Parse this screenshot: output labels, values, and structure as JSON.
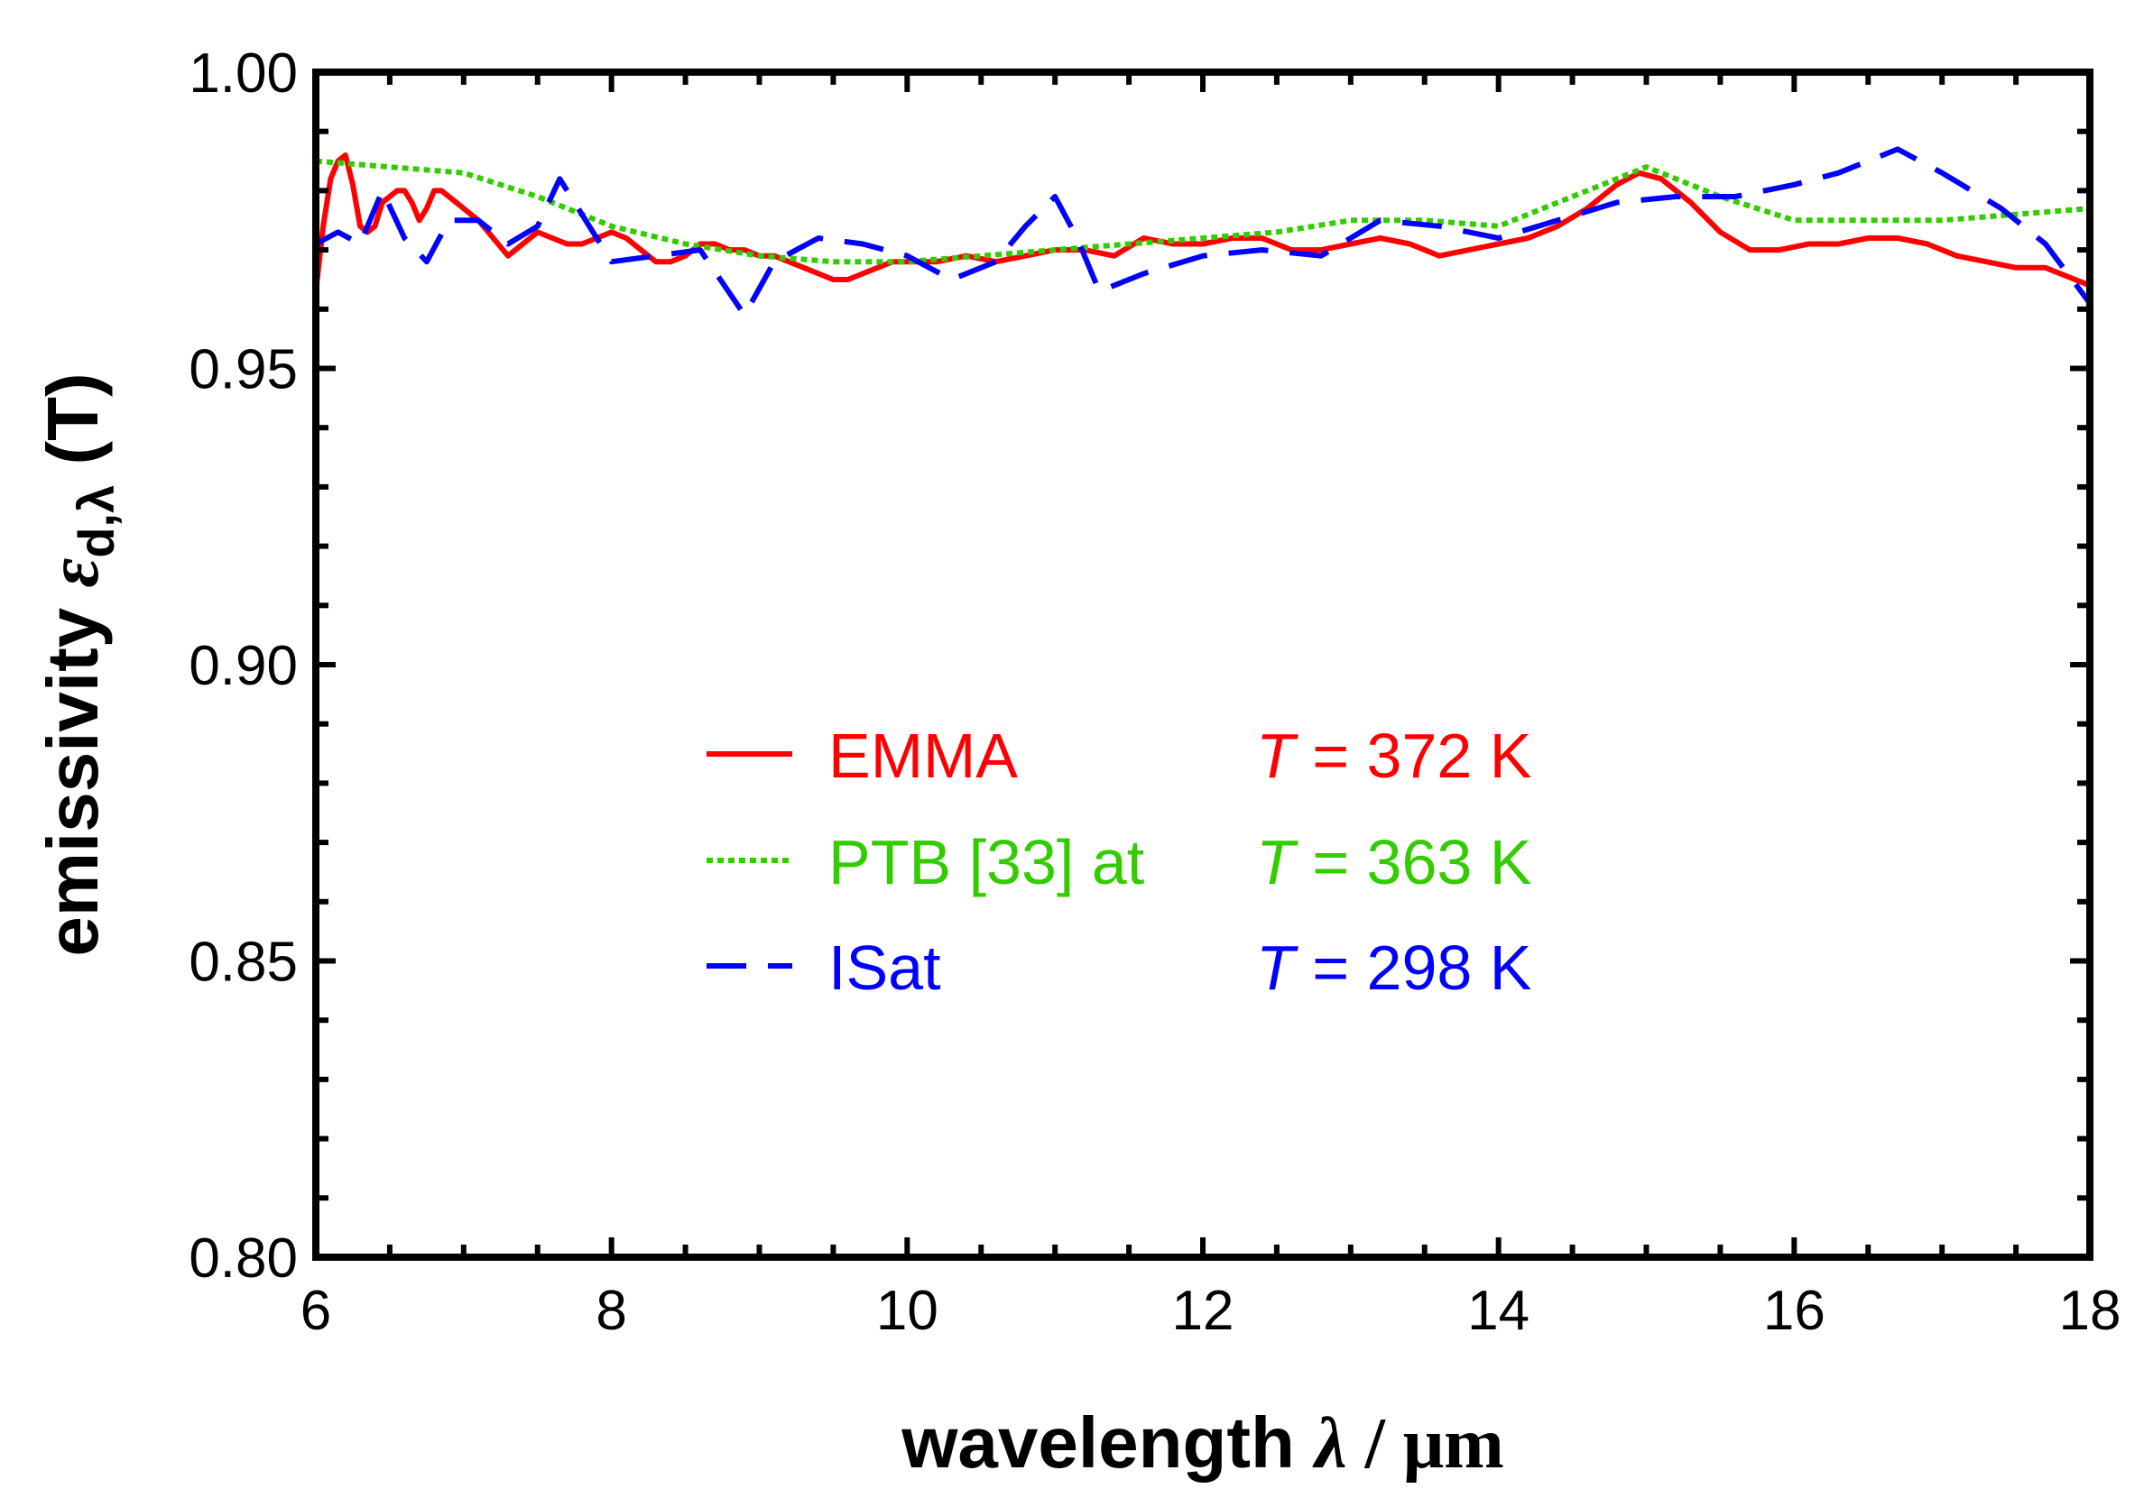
{
  "chart_data": {
    "type": "line",
    "xlabel": {
      "prefix": "wavelength ",
      "symbol": "λ",
      "unit": " /  μm"
    },
    "ylabel": {
      "prefix": "emissivity  ",
      "symbol": "ε",
      "subscript": "d,λ",
      "suffix": " (T)"
    },
    "xlim": [
      6,
      18
    ],
    "ylim": [
      0.8,
      1.0
    ],
    "x_ticks": [
      "6",
      "8",
      "10",
      "12",
      "14",
      "16",
      "18"
    ],
    "y_ticks": [
      "0.80",
      "0.85",
      "0.90",
      "0.95",
      "1.00"
    ],
    "series": [
      {
        "name": "EMMA",
        "temperature_label": {
          "symbol": "T",
          "text": " = 372 K"
        },
        "color": "#ff0000",
        "style": "solid",
        "x": [
          6.0,
          6.05,
          6.1,
          6.15,
          6.2,
          6.25,
          6.3,
          6.35,
          6.4,
          6.45,
          6.5,
          6.55,
          6.6,
          6.65,
          6.7,
          6.75,
          6.8,
          6.85,
          6.9,
          7.0,
          7.1,
          7.2,
          7.3,
          7.4,
          7.5,
          7.6,
          7.7,
          7.8,
          7.9,
          8.0,
          8.1,
          8.2,
          8.3,
          8.4,
          8.5,
          8.6,
          8.7,
          8.8,
          8.9,
          9.0,
          9.1,
          9.2,
          9.3,
          9.4,
          9.5,
          9.6,
          9.7,
          9.8,
          9.9,
          10.0,
          10.2,
          10.4,
          10.6,
          10.8,
          11.0,
          11.2,
          11.4,
          11.6,
          11.8,
          12.0,
          12.2,
          12.4,
          12.6,
          12.8,
          13.0,
          13.2,
          13.4,
          13.6,
          13.8,
          14.0,
          14.2,
          14.4,
          14.6,
          14.8,
          14.95,
          15.1,
          15.3,
          15.5,
          15.7,
          15.9,
          16.1,
          16.3,
          16.5,
          16.7,
          16.9,
          17.1,
          17.3,
          17.5,
          17.7,
          17.9,
          18.0
        ],
        "values": [
          0.963,
          0.974,
          0.982,
          0.985,
          0.986,
          0.981,
          0.974,
          0.973,
          0.974,
          0.978,
          0.979,
          0.98,
          0.98,
          0.978,
          0.975,
          0.977,
          0.98,
          0.98,
          0.979,
          0.977,
          0.975,
          0.972,
          0.969,
          0.971,
          0.973,
          0.972,
          0.971,
          0.971,
          0.972,
          0.973,
          0.972,
          0.97,
          0.968,
          0.968,
          0.969,
          0.971,
          0.971,
          0.97,
          0.97,
          0.969,
          0.969,
          0.968,
          0.967,
          0.966,
          0.965,
          0.965,
          0.966,
          0.967,
          0.968,
          0.968,
          0.968,
          0.969,
          0.968,
          0.969,
          0.97,
          0.97,
          0.969,
          0.972,
          0.971,
          0.971,
          0.972,
          0.972,
          0.97,
          0.97,
          0.971,
          0.972,
          0.971,
          0.969,
          0.97,
          0.971,
          0.972,
          0.974,
          0.977,
          0.981,
          0.983,
          0.982,
          0.978,
          0.973,
          0.97,
          0.97,
          0.971,
          0.971,
          0.972,
          0.972,
          0.971,
          0.969,
          0.968,
          0.967,
          0.967,
          0.965,
          0.964
        ]
      },
      {
        "name": "PTB [33] at",
        "temperature_label": {
          "symbol": "T",
          "text": " = 363 K"
        },
        "color": "#33cc00",
        "style": "dotted",
        "x": [
          6.0,
          6.5,
          7.0,
          7.5,
          8.0,
          8.5,
          9.0,
          9.5,
          10.0,
          10.5,
          11.0,
          11.5,
          12.0,
          12.5,
          13.0,
          13.5,
          14.0,
          14.5,
          15.0,
          15.5,
          16.0,
          16.5,
          17.0,
          17.5,
          18.0
        ],
        "values": [
          0.985,
          0.984,
          0.983,
          0.979,
          0.974,
          0.971,
          0.969,
          0.968,
          0.968,
          0.969,
          0.97,
          0.971,
          0.972,
          0.973,
          0.975,
          0.975,
          0.974,
          0.979,
          0.984,
          0.979,
          0.975,
          0.975,
          0.975,
          0.976,
          0.977
        ]
      },
      {
        "name": "ISat",
        "temperature_label": {
          "symbol": "T",
          "text": " = 298 K"
        },
        "color": "#0000ff",
        "style": "dashed",
        "x": [
          6.0,
          6.15,
          6.3,
          6.45,
          6.6,
          6.75,
          6.9,
          7.1,
          7.3,
          7.5,
          7.65,
          7.8,
          8.0,
          8.3,
          8.6,
          8.9,
          9.1,
          9.4,
          9.7,
          10.0,
          10.3,
          10.6,
          10.8,
          11.0,
          11.15,
          11.3,
          11.6,
          12.0,
          12.4,
          12.8,
          13.2,
          13.6,
          14.0,
          14.4,
          14.8,
          15.2,
          15.6,
          16.0,
          16.3,
          16.7,
          17.0,
          17.4,
          17.7,
          18.0
        ],
        "values": [
          0.971,
          0.973,
          0.971,
          0.98,
          0.972,
          0.968,
          0.975,
          0.975,
          0.971,
          0.974,
          0.982,
          0.976,
          0.968,
          0.969,
          0.97,
          0.959,
          0.968,
          0.972,
          0.971,
          0.969,
          0.965,
          0.968,
          0.974,
          0.979,
          0.972,
          0.963,
          0.966,
          0.969,
          0.97,
          0.969,
          0.975,
          0.974,
          0.972,
          0.975,
          0.978,
          0.979,
          0.979,
          0.981,
          0.983,
          0.987,
          0.983,
          0.977,
          0.971,
          0.961
        ]
      }
    ],
    "legend": "center"
  }
}
